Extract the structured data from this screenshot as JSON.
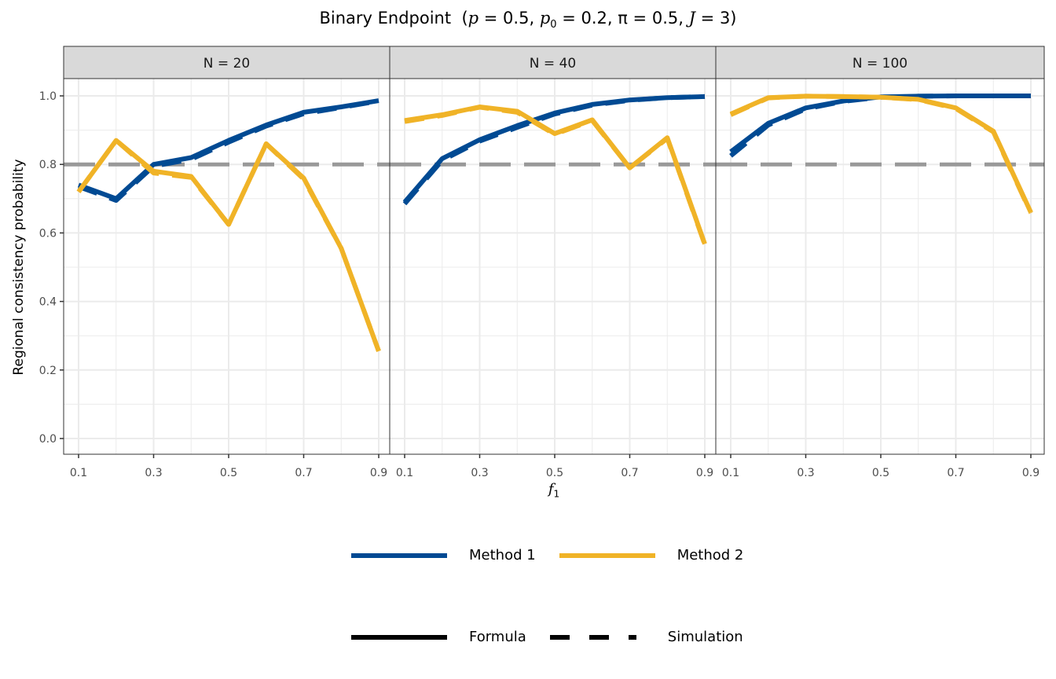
{
  "title": {
    "main": "Binary Endpoint",
    "params": "(p = 0.5, p0 = 0.2, π = 0.5, J = 3)"
  },
  "axes": {
    "ylabel": "Regional consistency probability",
    "xlabel": "f",
    "xlabel_sub": "1",
    "yticks": [
      "0.0",
      "0.2",
      "0.4",
      "0.6",
      "0.8",
      "1.0"
    ],
    "xticks": [
      "0.1",
      "0.3",
      "0.5",
      "0.7",
      "0.9"
    ]
  },
  "legend": {
    "color": [
      {
        "label": "Method 1",
        "color": "#004A93"
      },
      {
        "label": "Method 2",
        "color": "#F0B327"
      }
    ],
    "linetype": [
      {
        "label": "Formula",
        "style": "solid"
      },
      {
        "label": "Simulation",
        "style": "dashed"
      }
    ]
  },
  "reference_line": {
    "y": 0.8,
    "color": "#999999",
    "style": "dashed"
  },
  "chart_data": {
    "type": "line",
    "title": "Binary Endpoint (p = 0.5, p0 = 0.2, π = 0.5, J = 3)",
    "xlabel": "f1",
    "ylabel": "Regional consistency probability",
    "x": [
      0.1,
      0.2,
      0.3,
      0.4,
      0.5,
      0.6,
      0.7,
      0.8,
      0.9
    ],
    "xlim": [
      0.06,
      0.93
    ],
    "ylim": [
      -0.05,
      1.05
    ],
    "grid": true,
    "legend_position": "bottom",
    "facets": [
      {
        "label": "N = 20",
        "series": [
          {
            "name": "Method 1 - Formula",
            "values": [
              0.74,
              0.7,
              0.8,
              0.82,
              0.87,
              0.915,
              0.952,
              0.968,
              0.986
            ]
          },
          {
            "name": "Method 1 - Simulation",
            "values": [
              0.735,
              0.695,
              0.795,
              0.815,
              0.865,
              0.912,
              0.948,
              0.966,
              0.985
            ]
          },
          {
            "name": "Method 2 - Formula",
            "values": [
              0.72,
              0.87,
              0.78,
              0.765,
              0.625,
              0.86,
              0.76,
              0.555,
              0.255
            ]
          },
          {
            "name": "Method 2 - Simulation",
            "values": [
              0.72,
              0.87,
              0.775,
              0.762,
              0.625,
              0.86,
              0.757,
              0.555,
              0.255
            ]
          }
        ]
      },
      {
        "label": "N = 40",
        "series": [
          {
            "name": "Method 1 - Formula",
            "values": [
              0.69,
              0.817,
              0.872,
              0.913,
              0.95,
              0.975,
              0.988,
              0.995,
              0.998
            ]
          },
          {
            "name": "Method 1 - Simulation",
            "values": [
              0.685,
              0.812,
              0.868,
              0.908,
              0.947,
              0.973,
              0.987,
              0.995,
              0.998
            ]
          },
          {
            "name": "Method 2 - Formula",
            "values": [
              0.928,
              0.945,
              0.968,
              0.955,
              0.89,
              0.93,
              0.79,
              0.878,
              0.568
            ]
          },
          {
            "name": "Method 2 - Simulation",
            "values": [
              0.925,
              0.943,
              0.967,
              0.952,
              0.888,
              0.928,
              0.79,
              0.876,
              0.566
            ]
          }
        ]
      },
      {
        "label": "N = 100",
        "series": [
          {
            "name": "Method 1 - Formula",
            "values": [
              0.837,
              0.92,
              0.965,
              0.985,
              0.997,
              0.999,
              1.0,
              1.0,
              1.0
            ]
          },
          {
            "name": "Method 1 - Simulation",
            "values": [
              0.825,
              0.915,
              0.962,
              0.984,
              0.996,
              0.999,
              1.0,
              1.0,
              1.0
            ]
          },
          {
            "name": "Method 2 - Formula",
            "values": [
              0.947,
              0.995,
              0.999,
              0.998,
              0.996,
              0.99,
              0.965,
              0.897,
              0.66
            ]
          },
          {
            "name": "Method 2 - Simulation",
            "values": [
              0.945,
              0.994,
              0.999,
              0.998,
              0.996,
              0.989,
              0.963,
              0.895,
              0.658
            ]
          }
        ]
      }
    ]
  }
}
